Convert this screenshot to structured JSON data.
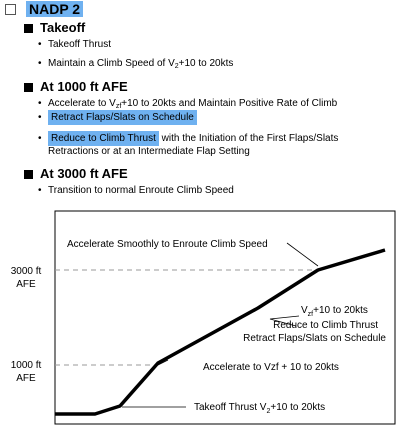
{
  "colors": {
    "highlight": "#6fb1f0",
    "dashed": "#999999",
    "frame": "#000000"
  },
  "header": {
    "checkbox_icon": "empty-checkbox-icon",
    "title": "NADP 2"
  },
  "sections": {
    "takeoff": {
      "title": "Takeoff",
      "bullet1": "Takeoff Thrust",
      "bullet2_pre": "Maintain a Climb Speed of V",
      "bullet2_sub": "2",
      "bullet2_post": "+10 to 20kts"
    },
    "at1000": {
      "title": "At 1000 ft AFE",
      "bullet1_pre": "Accelerate to V",
      "bullet1_sub": "zf",
      "bullet1_post": "+10 to 20kts and Maintain Positive Rate of Climb",
      "bullet2": "Retract Flaps/Slats on Schedule",
      "bullet3_hl": "Reduce to Climb Thrust",
      "bullet3_rest": " with the Initiation of the First Flaps/Slats",
      "bullet3_line2": "Retractions or at an Intermediate Flap Setting"
    },
    "at3000": {
      "title": "At 3000 ft AFE",
      "bullet1": "Transition to normal Enroute Climb Speed"
    }
  },
  "diagram": {
    "label_3000_line1": "3000 ft",
    "label_3000_line2": "AFE",
    "label_1000_line1": "1000 ft",
    "label_1000_line2": "AFE",
    "accel_enroute": "Accelerate Smoothly to Enroute Climb Speed",
    "vzf_pre": "V",
    "vzf_sub": "zf",
    "vzf_post": "+10 to 20kts",
    "reduce_climb": "Reduce to Climb Thrust",
    "retract_flaps": "Retract Flaps/Slats on Schedule",
    "accel_vzf": "Accelerate to Vzf + 10 to 20kts",
    "takeoff_pre": "Takeoff Thrust V",
    "takeoff_sub": "2",
    "takeoff_post": "+10 to 20kts"
  }
}
